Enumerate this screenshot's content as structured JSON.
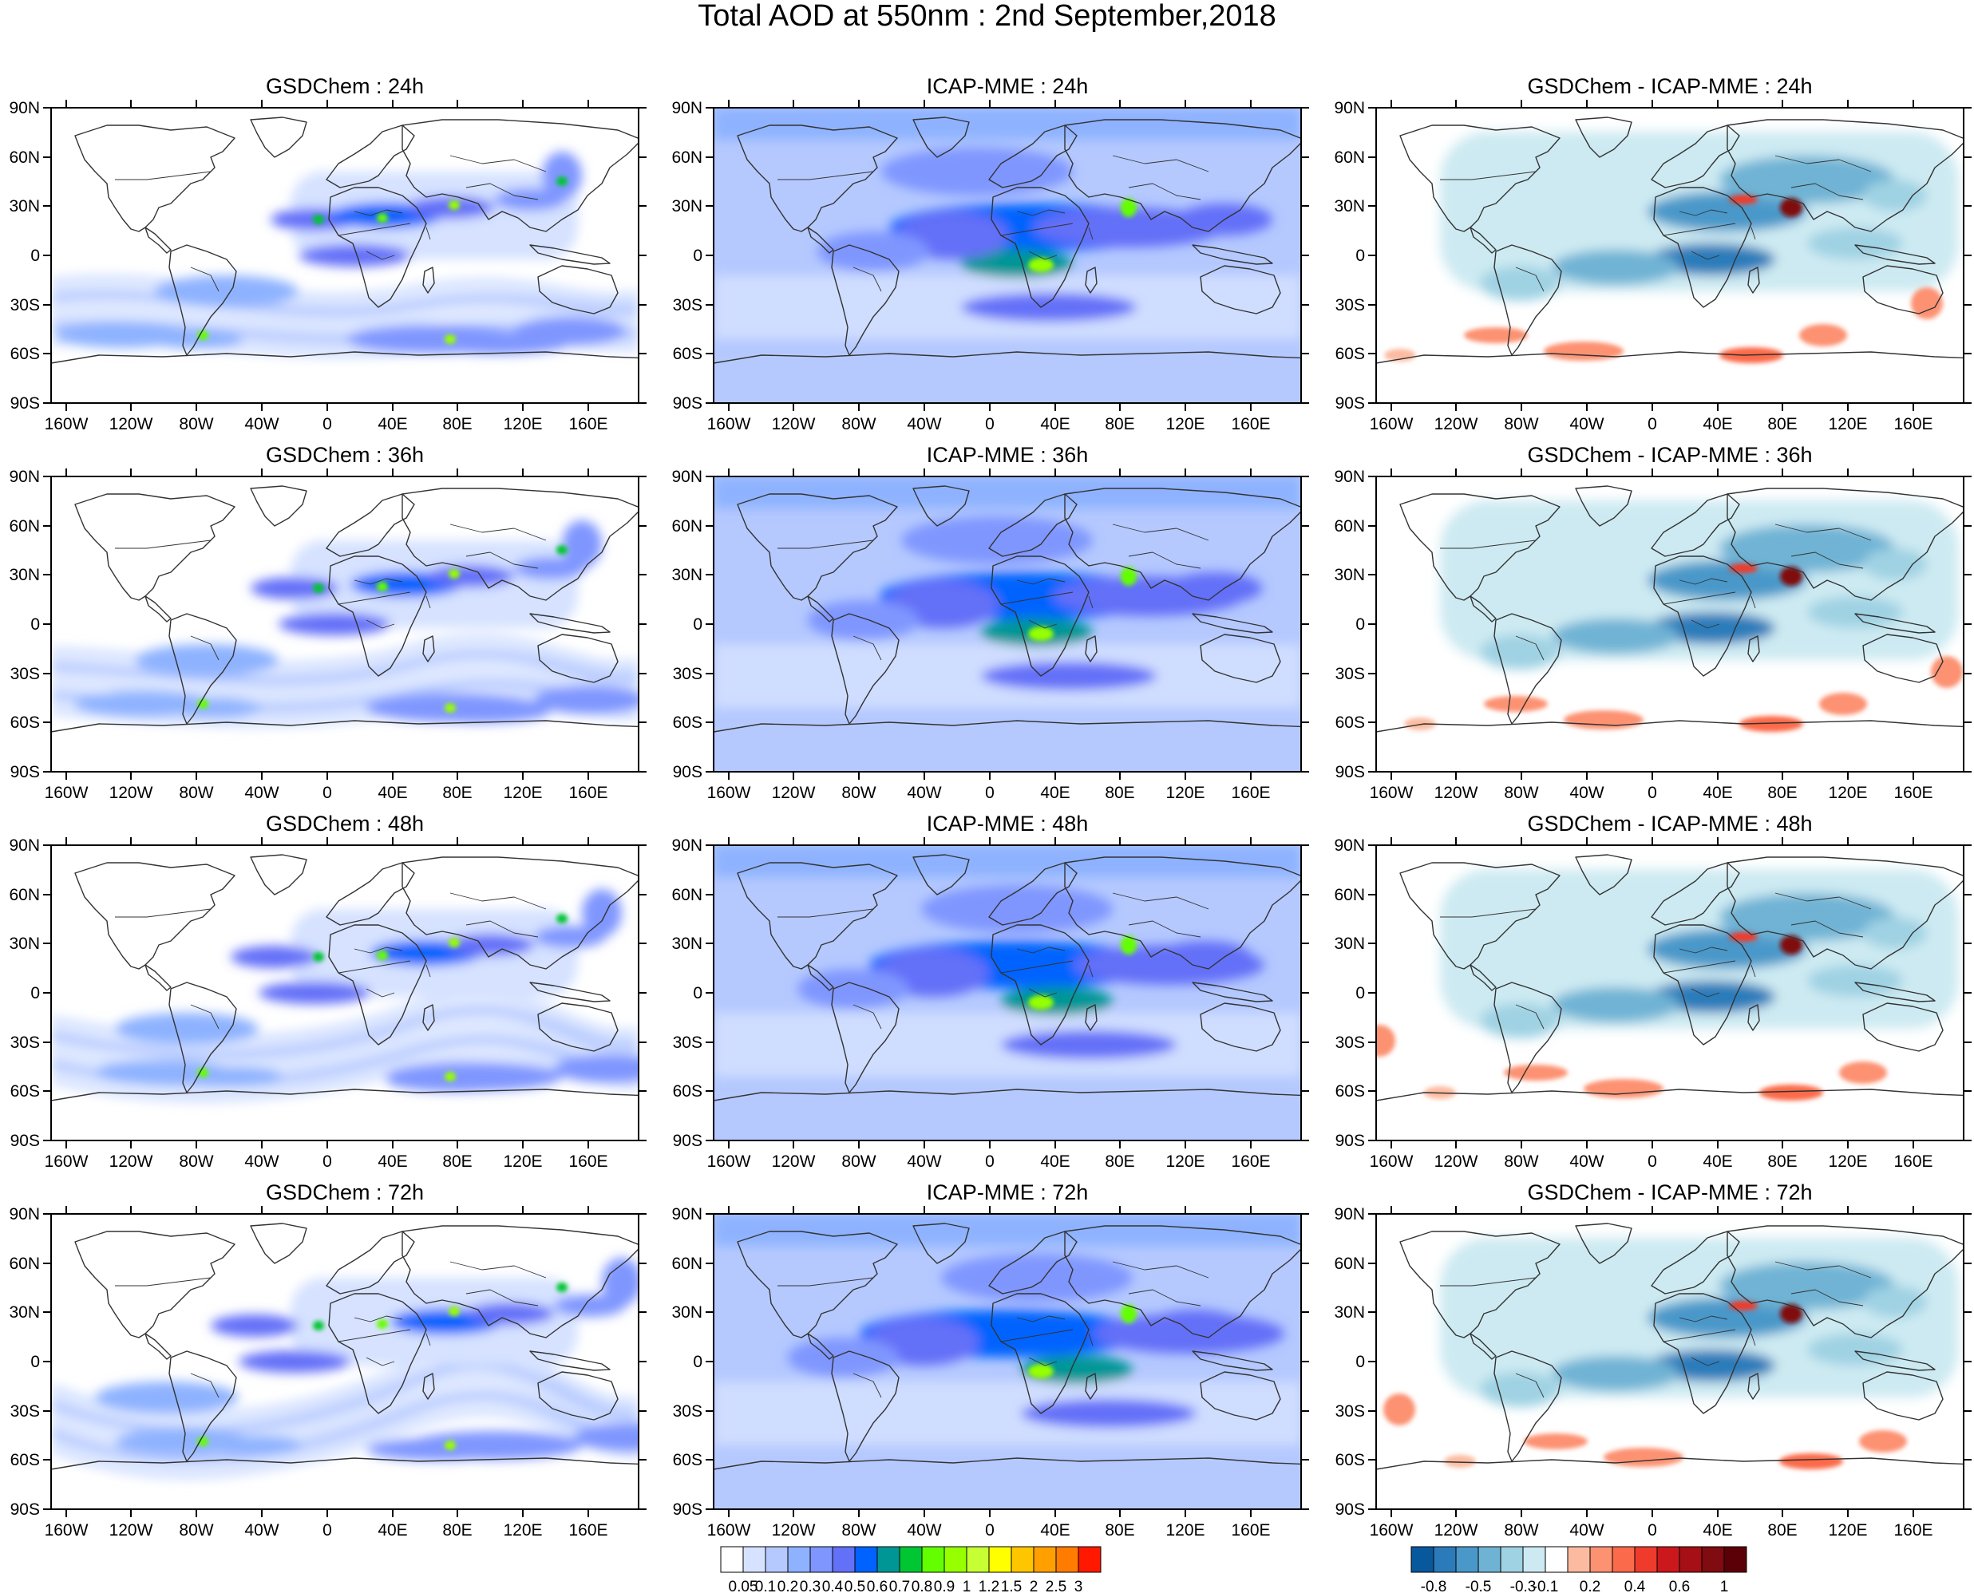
{
  "title": "Total AOD at 550nm : 2nd September,2018",
  "panels": [
    {
      "title": "GSDChem : 24h",
      "type": "aod"
    },
    {
      "title": "ICAP-MME : 24h",
      "type": "aod_icap"
    },
    {
      "title": "GSDChem - ICAP-MME : 24h",
      "type": "diff"
    },
    {
      "title": "GSDChem : 36h",
      "type": "aod"
    },
    {
      "title": "ICAP-MME : 36h",
      "type": "aod_icap"
    },
    {
      "title": "GSDChem - ICAP-MME : 36h",
      "type": "diff"
    },
    {
      "title": "GSDChem : 48h",
      "type": "aod"
    },
    {
      "title": "ICAP-MME : 48h",
      "type": "aod_icap"
    },
    {
      "title": "GSDChem - ICAP-MME : 48h",
      "type": "diff"
    },
    {
      "title": "GSDChem : 72h",
      "type": "aod"
    },
    {
      "title": "ICAP-MME : 72h",
      "type": "aod_icap"
    },
    {
      "title": "GSDChem - ICAP-MME : 72h",
      "type": "diff"
    }
  ],
  "lat_labels": [
    "90N",
    "60N",
    "30N",
    "0",
    "30S",
    "60S",
    "90S"
  ],
  "lon_labels": [
    "160W",
    "120W",
    "80W",
    "40W",
    "0",
    "40E",
    "80E",
    "120E",
    "160E"
  ],
  "colorbar_aod": {
    "colors": [
      "#ffffff",
      "#d6e2ff",
      "#b5c9ff",
      "#8eb2ff",
      "#7f96ff",
      "#6370f8",
      "#0063ff",
      "#009696",
      "#00c633",
      "#63ff00",
      "#96ff00",
      "#c6ff33",
      "#ffff00",
      "#ffc600",
      "#ffa000",
      "#ff7c00",
      "#ff1900"
    ],
    "labels": [
      "0.05",
      "0.1",
      "0.2",
      "0.3",
      "0.4",
      "0.5",
      "0.6",
      "0.7",
      "0.8",
      "0.9",
      "1",
      "1.2",
      "1.5",
      "2",
      "2.5",
      "3"
    ]
  },
  "colorbar_diff": {
    "colors": [
      "#08589e",
      "#2b7bba",
      "#4a98c9",
      "#6fb3d4",
      "#9fd2e3",
      "#cdeaf2",
      "#ffffff",
      "#fcbba1",
      "#fc9272",
      "#fb6a4a",
      "#ef3b2c",
      "#cb181d",
      "#a50f15",
      "#800b10",
      "#5c0008"
    ],
    "labels": [
      "-0.8",
      "-0.5",
      "-0.3",
      "-0.1",
      "0.2",
      "0.4",
      "0.6",
      "1"
    ]
  }
}
